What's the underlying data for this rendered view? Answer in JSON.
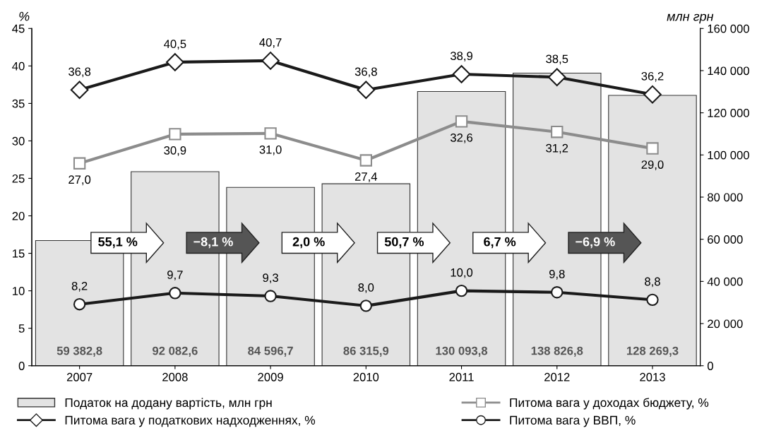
{
  "chart_data": {
    "type": "line",
    "ylabel": "%",
    "y2label": "млн грн",
    "categories": [
      "2007",
      "2008",
      "2009",
      "2010",
      "2011",
      "2012",
      "2013"
    ],
    "series": [
      {
        "name": "Податок на додану вартість, млн грн",
        "type": "bar",
        "axis": "y2",
        "color": "#e3e3e3",
        "values": [
          59382.8,
          92082.6,
          84596.7,
          86315.9,
          130093.8,
          138826.8,
          128269.3
        ],
        "value_labels": [
          "59 382,8",
          "92 082,6",
          "84 596,7",
          "86 315,9",
          "130 093,8",
          "138 826,8",
          "128 269,3"
        ]
      },
      {
        "name": "Питома вага у податкових надходженнях, %",
        "marker": "diamond",
        "color": "#1a1a1a",
        "values": [
          36.8,
          40.5,
          40.7,
          36.8,
          38.9,
          38.5,
          36.2
        ],
        "value_labels": [
          "36,8",
          "40,5",
          "40,7",
          "36,8",
          "38,9",
          "38,5",
          "36,2"
        ]
      },
      {
        "name": "Питома вага у доходах бюджету, %",
        "marker": "square",
        "color": "#8c8c8c",
        "values": [
          27.0,
          30.9,
          31.0,
          27.4,
          32.6,
          31.2,
          29.0
        ],
        "value_labels": [
          "27,0",
          "30,9",
          "31,0",
          "27,4",
          "32,6",
          "31,2",
          "29,0"
        ]
      },
      {
        "name": "Питома вага у ВВП, %",
        "marker": "circle",
        "color": "#1a1a1a",
        "values": [
          8.2,
          9.7,
          9.3,
          8.0,
          10.0,
          9.8,
          8.8
        ],
        "value_labels": [
          "8,2",
          "9,7",
          "9,3",
          "8,0",
          "10,0",
          "9,8",
          "8,8"
        ]
      }
    ],
    "ylim": [
      0,
      45
    ],
    "yticks": [
      0,
      5,
      10,
      15,
      20,
      25,
      30,
      35,
      40,
      45
    ],
    "y2lim": [
      0,
      160000
    ],
    "y2ticks": [
      0,
      {
        "value": 20000,
        "label": "20 000"
      },
      {
        "value": 40000,
        "label": "40 000"
      },
      {
        "value": 60000,
        "label": "60 000"
      },
      {
        "value": 80000,
        "label": "80 000"
      },
      {
        "value": 100000,
        "label": "100 000"
      },
      {
        "value": 120000,
        "label": "120 000"
      },
      {
        "value": 140000,
        "label": "140 000"
      },
      {
        "value": 160000,
        "label": "160 000"
      }
    ],
    "annotations": [
      "55,1 %",
      "−8,1 %",
      "2,0 %",
      "50,7 %",
      "6,7 %",
      "−6,9 %"
    ],
    "grid": false,
    "legend": "bottom"
  }
}
